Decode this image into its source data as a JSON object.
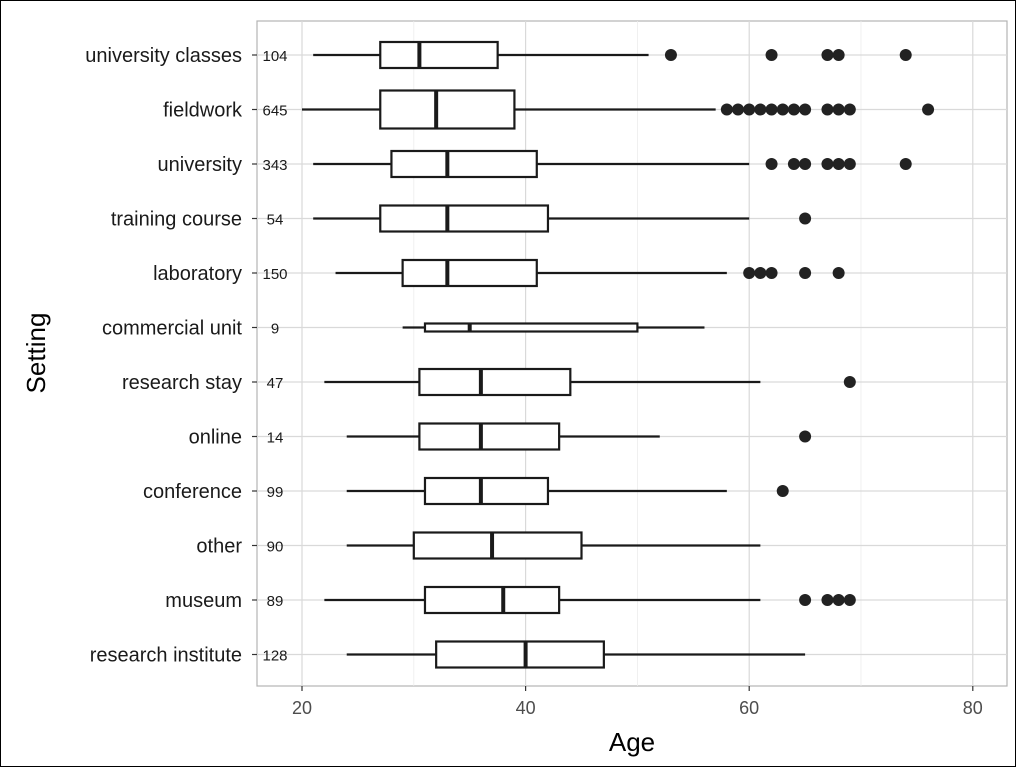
{
  "chart_data": {
    "type": "boxplot",
    "orientation": "horizontal",
    "xlabel": "Age",
    "ylabel": "Setting",
    "xlim": [
      16,
      84
    ],
    "xticks": [
      20,
      40,
      60,
      80
    ],
    "grid": true,
    "categories": [
      {
        "label": "university classes",
        "n": "104",
        "whisker_low": 21,
        "q1": 27,
        "median": 30.5,
        "q3": 37.5,
        "whisker_high": 51,
        "outliers": [
          53,
          62,
          67,
          68,
          74
        ]
      },
      {
        "label": "fieldwork",
        "n": "645",
        "whisker_low": 20,
        "q1": 27,
        "median": 32,
        "q3": 39,
        "whisker_high": 57,
        "outliers": [
          58,
          59,
          60,
          61,
          62,
          63,
          64,
          65,
          67,
          68,
          69,
          76
        ]
      },
      {
        "label": "university",
        "n": "343",
        "whisker_low": 21,
        "q1": 28,
        "median": 33,
        "q3": 41,
        "whisker_high": 60,
        "outliers": [
          62,
          64,
          65,
          67,
          68,
          69,
          74
        ]
      },
      {
        "label": "training course",
        "n": "54",
        "whisker_low": 21,
        "q1": 27,
        "median": 33,
        "q3": 42,
        "whisker_high": 60,
        "outliers": [
          65
        ]
      },
      {
        "label": "laboratory",
        "n": "150",
        "whisker_low": 23,
        "q1": 29,
        "median": 33,
        "q3": 41,
        "whisker_high": 58,
        "outliers": [
          60,
          61,
          62,
          65,
          68
        ]
      },
      {
        "label": "commercial unit",
        "n": "9",
        "whisker_low": 29,
        "q1": 31,
        "median": 35,
        "q3": 50,
        "whisker_high": 56,
        "outliers": []
      },
      {
        "label": "research stay",
        "n": "47",
        "whisker_low": 22,
        "q1": 30.5,
        "median": 36,
        "q3": 44,
        "whisker_high": 61,
        "outliers": [
          69
        ]
      },
      {
        "label": "online",
        "n": "14",
        "whisker_low": 24,
        "q1": 30.5,
        "median": 36,
        "q3": 43,
        "whisker_high": 52,
        "outliers": [
          65
        ]
      },
      {
        "label": "conference",
        "n": "99",
        "whisker_low": 24,
        "q1": 31,
        "median": 36,
        "q3": 42,
        "whisker_high": 58,
        "outliers": [
          63
        ]
      },
      {
        "label": "other",
        "n": "90",
        "whisker_low": 24,
        "q1": 30,
        "median": 37,
        "q3": 45,
        "whisker_high": 61,
        "outliers": []
      },
      {
        "label": "museum",
        "n": "89",
        "whisker_low": 22,
        "q1": 31,
        "median": 38,
        "q3": 43,
        "whisker_high": 61,
        "outliers": [
          65,
          67,
          68,
          69
        ]
      },
      {
        "label": "research institute",
        "n": "128",
        "whisker_low": 24,
        "q1": 32,
        "median": 40,
        "q3": 47,
        "whisker_high": 65,
        "outliers": []
      }
    ]
  }
}
